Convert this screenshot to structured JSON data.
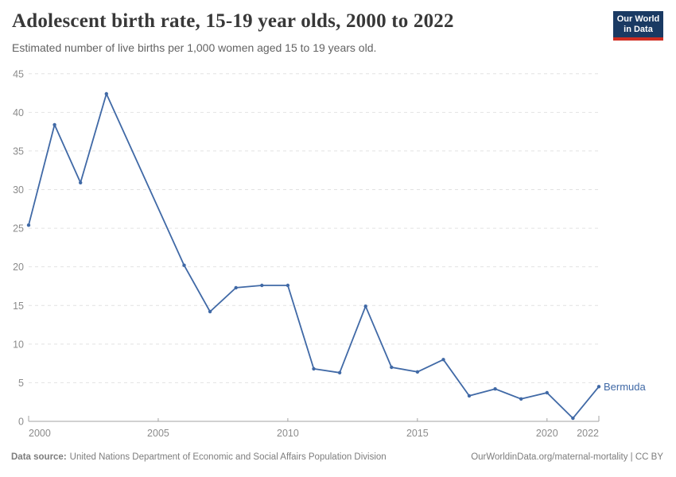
{
  "header": {
    "title": "Adolescent birth rate, 15-19 year olds, 2000 to 2022",
    "subtitle": "Estimated number of live births per 1,000 women aged 15 to 19 years old.",
    "logo_line1": "Our World",
    "logo_line2": "in Data"
  },
  "footer": {
    "data_source_label": "Data source:",
    "data_source_text": "United Nations Department of Economic and Social Affairs Population Division",
    "link_text": "OurWorldinData.org/maternal-mortality | CC BY"
  },
  "colors": {
    "series_blue": "#4069a6",
    "grid": "#e2e2e2",
    "axis_line": "#a3a3a3",
    "axis_text": "#8b8b8b",
    "logo_navy": "#1a3a63",
    "logo_red": "#cf2d21"
  },
  "chart_data": {
    "type": "line",
    "title": "Adolescent birth rate, 15-19 year olds, 2000 to 2022",
    "subtitle": "Estimated number of live births per 1,000 women aged 15 to 19 years old.",
    "xlabel": "",
    "ylabel": "",
    "grid": "horizontal-dashed",
    "legend": "end-of-line-label",
    "x_ticks": [
      2000,
      2005,
      2010,
      2015,
      2020,
      2022
    ],
    "xlim": [
      2000,
      2022
    ],
    "y_ticks": [
      0,
      5,
      10,
      15,
      20,
      25,
      30,
      35,
      40,
      45
    ],
    "ylim": [
      0,
      45
    ],
    "series": [
      {
        "name": "Bermuda",
        "color": "#4069a6",
        "points": [
          [
            2000,
            25.4
          ],
          [
            2001,
            38.4
          ],
          [
            2002,
            30.9
          ],
          [
            2003,
            42.4
          ],
          [
            2006,
            20.2
          ],
          [
            2007,
            14.2
          ],
          [
            2008,
            17.3
          ],
          [
            2009,
            17.6
          ],
          [
            2010,
            17.6
          ],
          [
            2011,
            6.8
          ],
          [
            2012,
            6.3
          ],
          [
            2013,
            14.9
          ],
          [
            2014,
            7.0
          ],
          [
            2015,
            6.4
          ],
          [
            2016,
            8.0
          ],
          [
            2017,
            3.3
          ],
          [
            2018,
            4.2
          ],
          [
            2019,
            2.9
          ],
          [
            2020,
            3.7
          ],
          [
            2021,
            0.4
          ],
          [
            2022,
            4.5
          ]
        ],
        "note": "no data points for 2004 and 2005; line connects 2003 directly to 2006"
      }
    ]
  }
}
